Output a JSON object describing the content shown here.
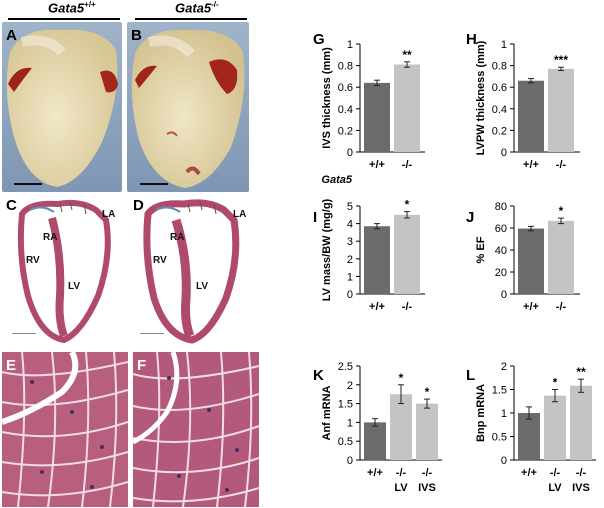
{
  "genotypes": {
    "wt": {
      "base": "Gata5",
      "sup": "+/+"
    },
    "ko": {
      "base": "Gata5",
      "sup": "-/-"
    }
  },
  "panels": {
    "A": "A",
    "B": "B",
    "C": "C",
    "D": "D",
    "E": "E",
    "F": "F"
  },
  "tissue_labels": {
    "C": {
      "la": "LA",
      "ra": "RA",
      "rv": "RV",
      "lv": "LV"
    },
    "D": {
      "la": "LA",
      "ra": "RA",
      "rv": "RV",
      "lv": "LV"
    }
  },
  "colors": {
    "wt_bar": "#6b6b6b",
    "ko_bar": "#c4c4c4",
    "heart": "#e4d9b6",
    "tissue": "#b04a6a"
  },
  "chart_data": [
    {
      "id": "G",
      "type": "bar",
      "panel_label": "G",
      "ylabel": "IVS thickness (mm)",
      "categories": [
        "+/+",
        "-/-"
      ],
      "sublabels": [
        "",
        ""
      ],
      "group_label": "Gata5",
      "values": [
        0.64,
        0.81
      ],
      "errors": [
        0.025,
        0.025
      ],
      "stars": [
        "",
        "**"
      ],
      "ylim": [
        0,
        1
      ],
      "yticks": [
        0,
        0.2,
        0.4,
        0.6,
        0.8,
        1
      ],
      "yticklabels": [
        "0",
        "0.2",
        "0.4",
        "0.6",
        "0.8",
        "1"
      ]
    },
    {
      "id": "H",
      "type": "bar",
      "panel_label": "H",
      "ylabel": "LVPW thickness (mm)",
      "categories": [
        "+/+",
        "-/-"
      ],
      "sublabels": [
        "",
        ""
      ],
      "group_label": "",
      "values": [
        0.66,
        0.77
      ],
      "errors": [
        0.02,
        0.015
      ],
      "stars": [
        "",
        "***"
      ],
      "ylim": [
        0,
        1
      ],
      "yticks": [
        0,
        0.2,
        0.4,
        0.6,
        0.8,
        1
      ],
      "yticklabels": [
        "0",
        "0.2",
        "0.4",
        "0.6",
        "0.8",
        "1"
      ]
    },
    {
      "id": "I",
      "type": "bar",
      "panel_label": "I",
      "ylabel": "LV mass/BW (mg/g)",
      "categories": [
        "+/+",
        "-/-"
      ],
      "sublabels": [
        "",
        ""
      ],
      "group_label": "",
      "values": [
        3.85,
        4.5
      ],
      "errors": [
        0.15,
        0.18
      ],
      "stars": [
        "",
        "*"
      ],
      "ylim": [
        0,
        5
      ],
      "yticks": [
        0,
        1,
        2,
        3,
        4,
        5
      ],
      "yticklabels": [
        "0",
        "1",
        "2",
        "3",
        "4",
        "5"
      ]
    },
    {
      "id": "J",
      "type": "bar",
      "panel_label": "J",
      "ylabel": "% EF",
      "categories": [
        "+/+",
        "-/-"
      ],
      "sublabels": [
        "",
        ""
      ],
      "group_label": "",
      "values": [
        59.5,
        66.5
      ],
      "errors": [
        2,
        2.5
      ],
      "stars": [
        "",
        "*"
      ],
      "ylim": [
        0,
        80
      ],
      "yticks": [
        0,
        20,
        40,
        60,
        80
      ],
      "yticklabels": [
        "0",
        "20",
        "40",
        "60",
        "80"
      ]
    },
    {
      "id": "K",
      "type": "bar",
      "panel_label": "K",
      "ylabel": "Anf mRNA",
      "categories": [
        "+/+",
        "-/-",
        "-/-"
      ],
      "sublabels": [
        "",
        "LV",
        "IVS"
      ],
      "group_label": "",
      "values": [
        1.0,
        1.75,
        1.5
      ],
      "errors": [
        0.1,
        0.25,
        0.12
      ],
      "stars": [
        "",
        "*",
        "*"
      ],
      "ylim": [
        0,
        2.5
      ],
      "yticks": [
        0,
        0.5,
        1,
        1.5,
        2,
        2.5
      ],
      "yticklabels": [
        "0",
        "0.5",
        "1",
        "1.5",
        "2",
        "2.5"
      ]
    },
    {
      "id": "L",
      "type": "bar",
      "panel_label": "L",
      "ylabel": "Bnp mRNA",
      "categories": [
        "+/+",
        "-/-",
        "-/-"
      ],
      "sublabels": [
        "",
        "LV",
        "IVS"
      ],
      "group_label": "",
      "values": [
        1.0,
        1.37,
        1.58
      ],
      "errors": [
        0.13,
        0.13,
        0.14
      ],
      "stars": [
        "",
        "*",
        "**"
      ],
      "ylim": [
        0,
        2
      ],
      "yticks": [
        0,
        0.5,
        1,
        1.5,
        2
      ],
      "yticklabels": [
        "0",
        "0.5",
        "1",
        "1.5",
        "2"
      ]
    }
  ]
}
